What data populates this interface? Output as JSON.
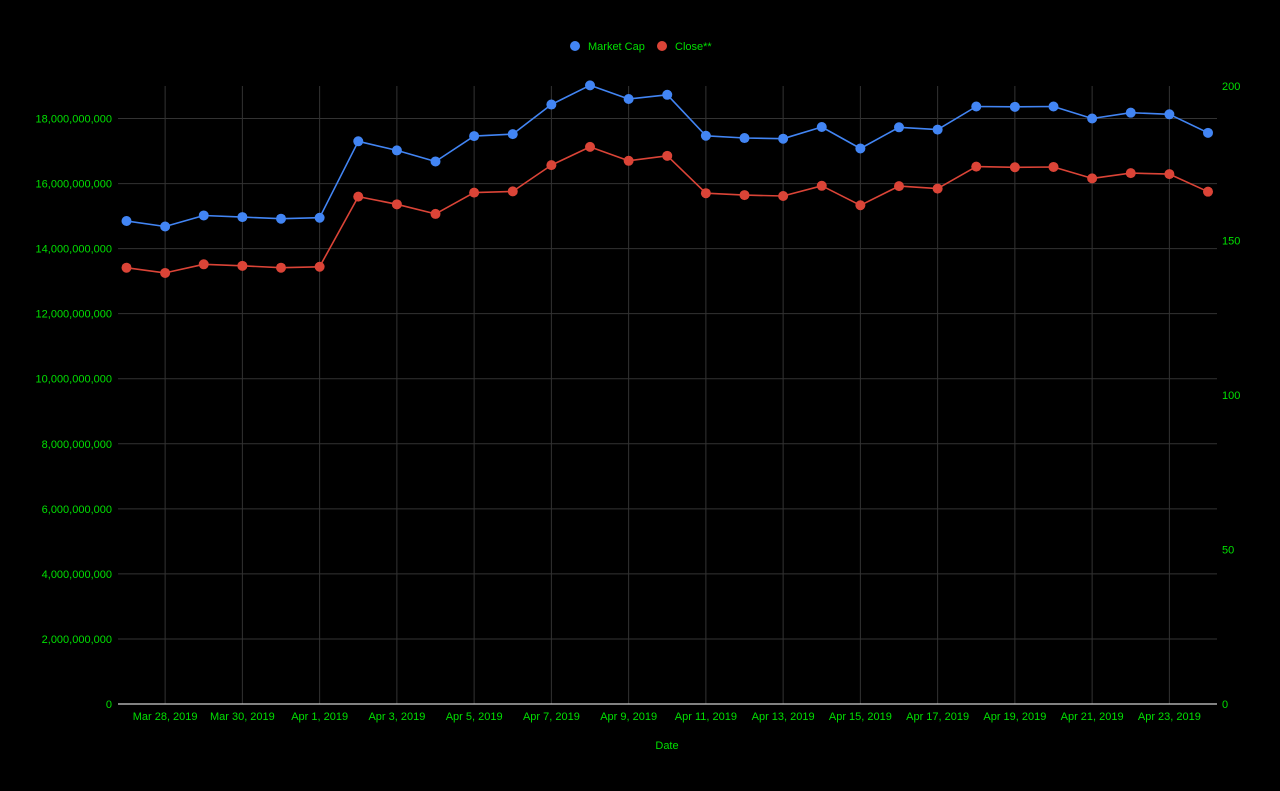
{
  "chart_data": {
    "type": "line",
    "title": "",
    "xlabel": "Date",
    "ylabel_left": "",
    "ylabel_right": "",
    "legend_position": "top",
    "grid": true,
    "background": "#000000",
    "text_color": "#00e000",
    "grid_color": "#333333",
    "x": [
      "2019-03-27",
      "2019-03-28",
      "2019-03-29",
      "2019-03-30",
      "2019-03-31",
      "2019-04-01",
      "2019-04-02",
      "2019-04-03",
      "2019-04-04",
      "2019-04-05",
      "2019-04-06",
      "2019-04-07",
      "2019-04-08",
      "2019-04-09",
      "2019-04-10",
      "2019-04-11",
      "2019-04-12",
      "2019-04-13",
      "2019-04-14",
      "2019-04-15",
      "2019-04-16",
      "2019-04-17",
      "2019-04-18",
      "2019-04-19",
      "2019-04-20",
      "2019-04-21",
      "2019-04-22",
      "2019-04-23",
      "2019-04-24"
    ],
    "x_tick_labels": [
      "Mar 28, 2019",
      "Mar 30, 2019",
      "Apr 1, 2019",
      "Apr 3, 2019",
      "Apr 5, 2019",
      "Apr 7, 2019",
      "Apr 9, 2019",
      "Apr 11, 2019",
      "Apr 13, 2019",
      "Apr 15, 2019",
      "Apr 17, 2019",
      "Apr 19, 2019",
      "Apr 21, 2019",
      "Apr 23, 2019"
    ],
    "x_tick_dates": [
      "2019-03-28",
      "2019-03-30",
      "2019-04-01",
      "2019-04-03",
      "2019-04-05",
      "2019-04-07",
      "2019-04-09",
      "2019-04-11",
      "2019-04-13",
      "2019-04-15",
      "2019-04-17",
      "2019-04-19",
      "2019-04-21",
      "2019-04-23"
    ],
    "y_left": {
      "range": [
        0,
        19000000000
      ],
      "ticks": [
        0,
        2000000000,
        4000000000,
        6000000000,
        8000000000,
        10000000000,
        12000000000,
        14000000000,
        16000000000,
        18000000000
      ],
      "tick_labels": [
        "0",
        "2,000,000,000",
        "4,000,000,000",
        "6,000,000,000",
        "8,000,000,000",
        "10,000,000,000",
        "12,000,000,000",
        "14,000,000,000",
        "16,000,000,000",
        "18,000,000,000"
      ]
    },
    "y_right": {
      "range": [
        0,
        200
      ],
      "ticks": [
        0,
        50,
        100,
        150,
        200
      ],
      "tick_labels": [
        "0",
        "50",
        "100",
        "150",
        "200"
      ]
    },
    "series": [
      {
        "name": "Market Cap",
        "axis": "left",
        "color": "#4285f4",
        "values": [
          14850000000,
          14680000000,
          15020000000,
          14970000000,
          14920000000,
          14950000000,
          17300000000,
          17020000000,
          16680000000,
          17460000000,
          17520000000,
          18430000000,
          19020000000,
          18600000000,
          18730000000,
          17470000000,
          17400000000,
          17380000000,
          17740000000,
          17080000000,
          17730000000,
          17660000000,
          18370000000,
          18360000000,
          18370000000,
          18000000000,
          18180000000,
          18130000000,
          17560000000
        ]
      },
      {
        "name": "Close**",
        "axis": "right",
        "color": "#db4437",
        "values": [
          141.2,
          139.5,
          142.3,
          141.8,
          141.2,
          141.5,
          164.2,
          161.7,
          158.6,
          165.5,
          165.9,
          174.4,
          180.3,
          175.8,
          177.4,
          165.3,
          164.7,
          164.4,
          167.7,
          161.4,
          167.6,
          166.8,
          173.9,
          173.7,
          173.8,
          170.1,
          171.8,
          171.5,
          165.8
        ]
      }
    ]
  }
}
